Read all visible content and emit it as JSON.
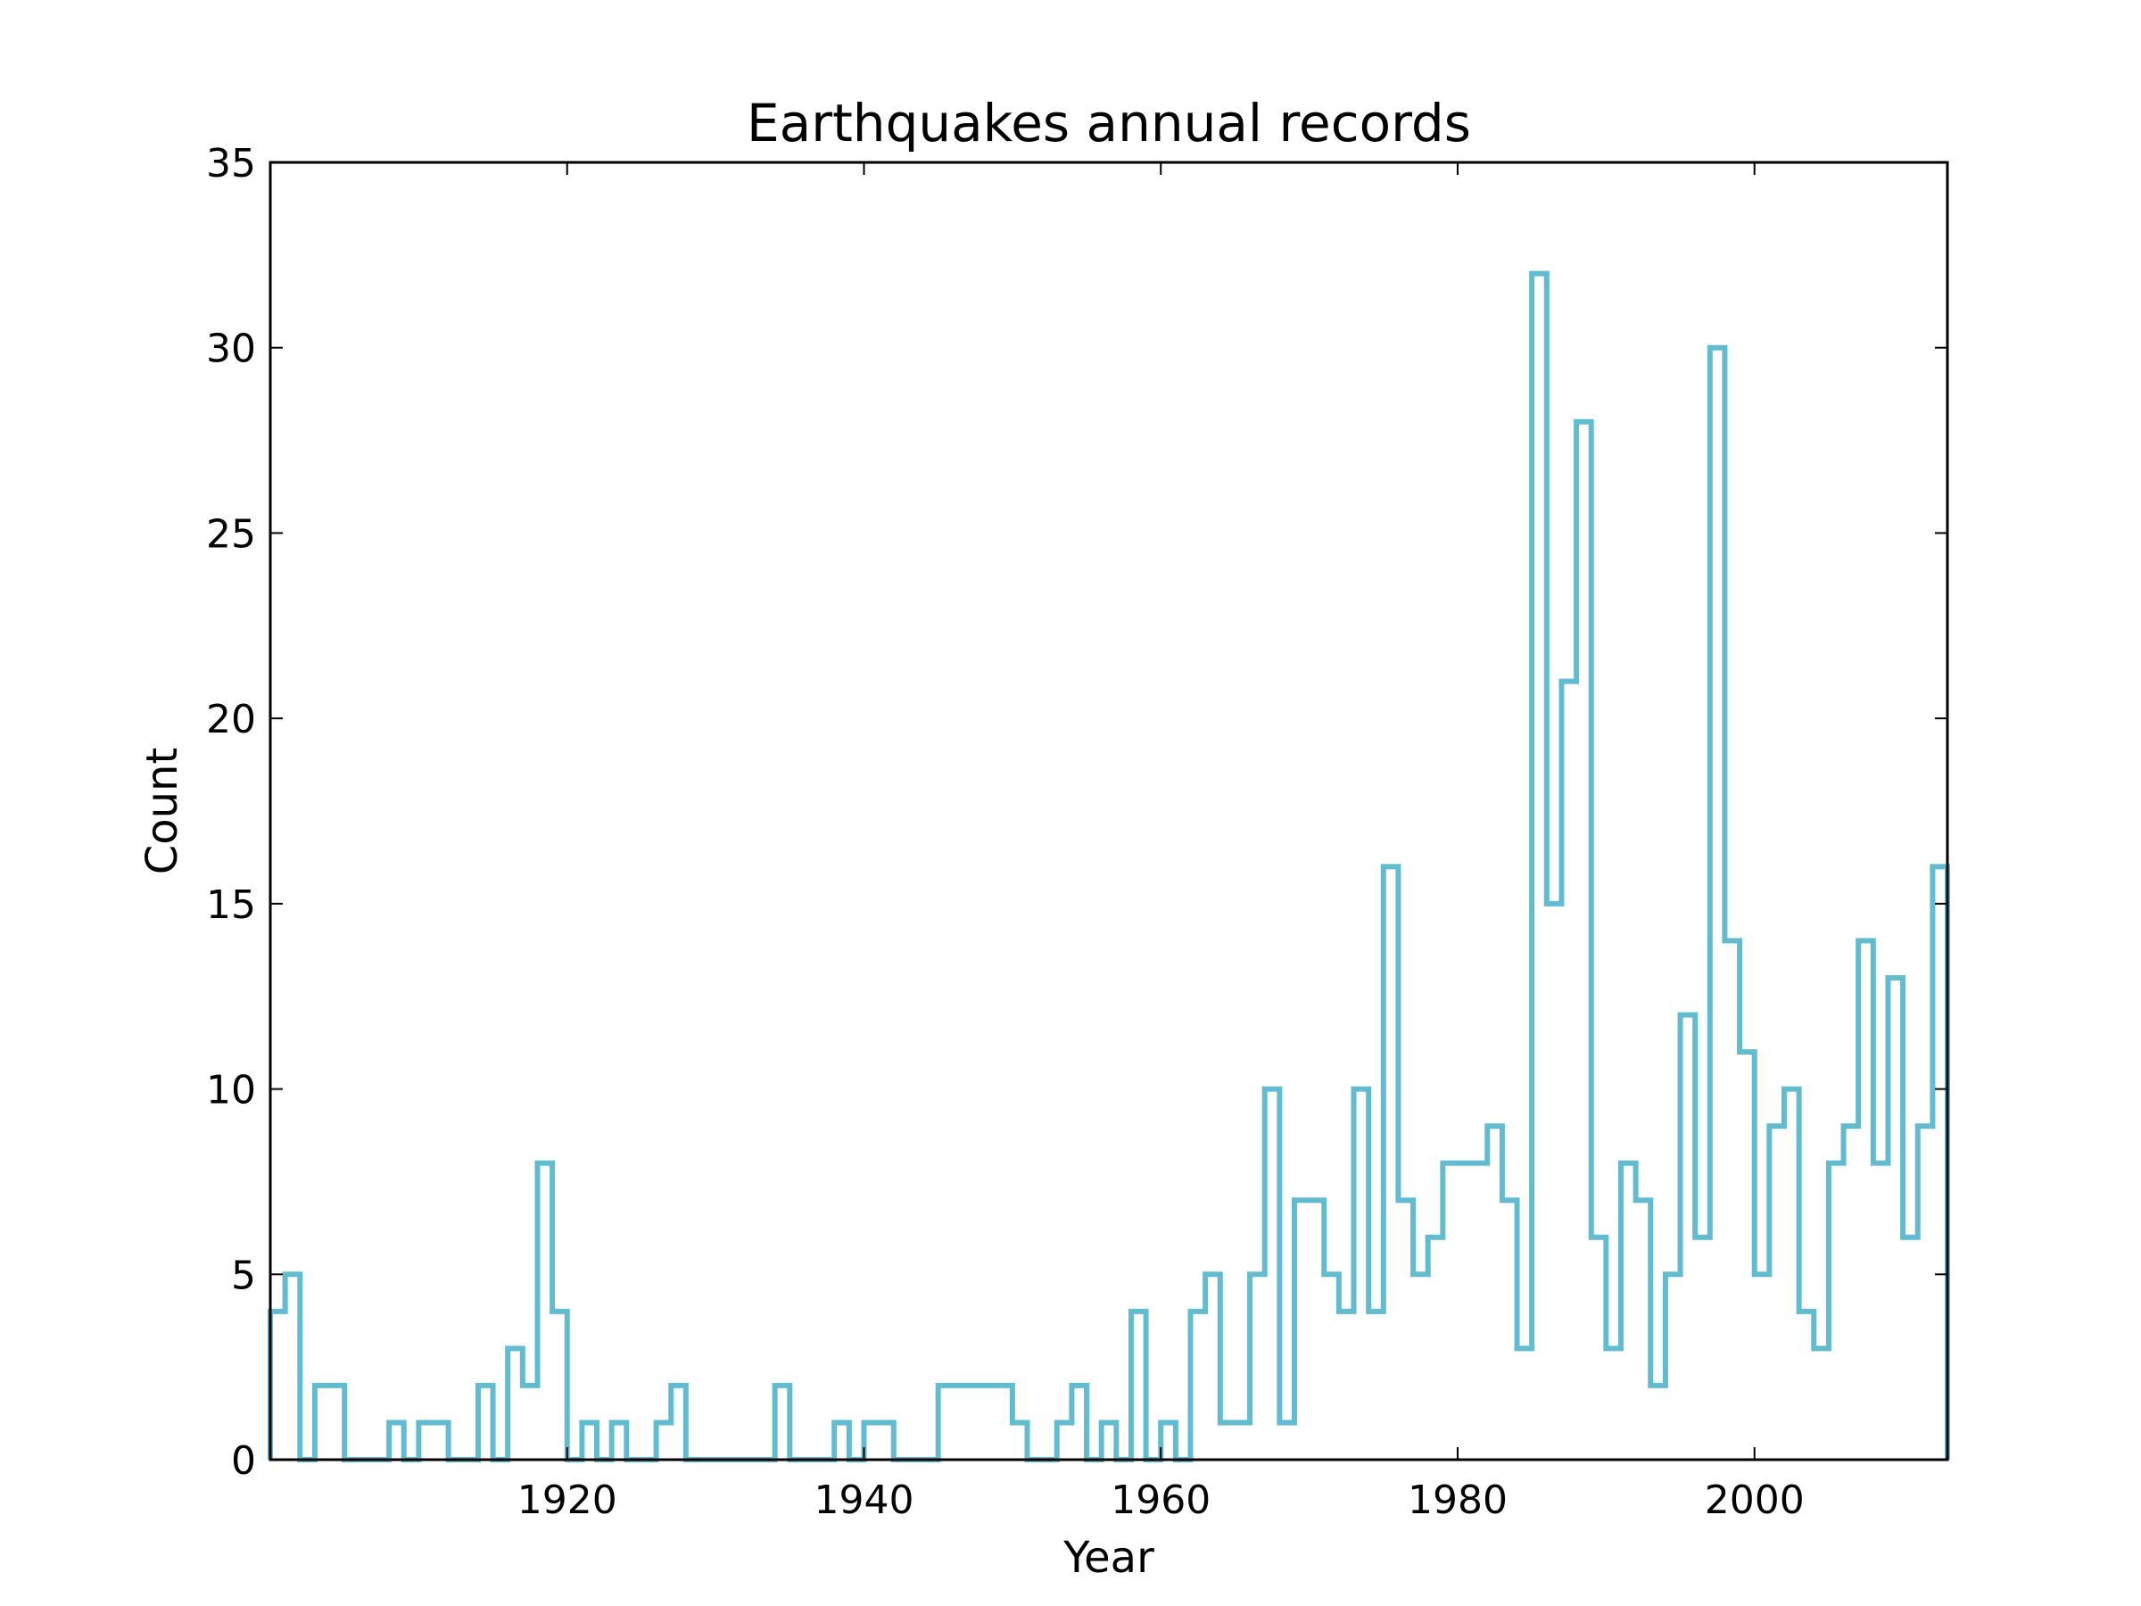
{
  "chart_data": {
    "type": "line",
    "style": "step",
    "title": "Earthquakes annual records",
    "xlabel": "Year",
    "ylabel": "Count",
    "xlim": [
      1900,
      2013
    ],
    "ylim": [
      0,
      35
    ],
    "x_ticks": [
      1920,
      1940,
      1960,
      1980,
      2000
    ],
    "y_ticks": [
      0,
      5,
      10,
      15,
      20,
      25,
      30,
      35
    ],
    "grid": false,
    "legend": "none",
    "color": "#62bcd0",
    "series": [
      {
        "x_start": 1900,
        "x_end": 2013,
        "values": [
          4,
          5,
          0,
          2,
          2,
          0,
          0,
          0,
          1,
          0,
          1,
          1,
          0,
          0,
          2,
          0,
          3,
          2,
          8,
          4,
          0,
          1,
          0,
          1,
          0,
          0,
          1,
          2,
          0,
          0,
          0,
          0,
          0,
          0,
          2,
          0,
          0,
          0,
          1,
          0,
          1,
          1,
          0,
          0,
          0,
          2,
          2,
          2,
          2,
          2,
          1,
          0,
          0,
          1,
          2,
          0,
          1,
          0,
          4,
          0,
          1,
          0,
          4,
          5,
          1,
          1,
          5,
          10,
          1,
          7,
          7,
          5,
          4,
          10,
          4,
          16,
          7,
          5,
          6,
          8,
          8,
          8,
          9,
          7,
          3,
          32,
          15,
          21,
          28,
          6,
          3,
          8,
          7,
          2,
          5,
          12,
          6,
          30,
          14,
          11,
          5,
          9,
          10,
          4,
          3,
          8,
          9,
          14,
          8,
          13,
          6,
          9,
          16
        ]
      }
    ]
  }
}
